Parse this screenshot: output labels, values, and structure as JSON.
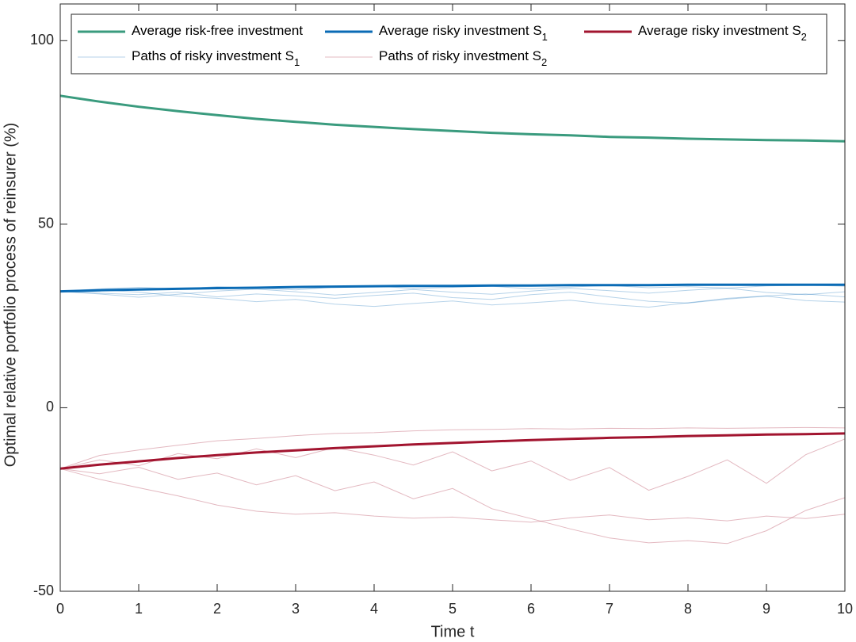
{
  "chart_data": {
    "type": "line",
    "xlabel": "Time t",
    "ylabel": "Optimal relative portfolio process of reinsurer (%)",
    "x": [
      0,
      0.5,
      1,
      1.5,
      2,
      2.5,
      3,
      3.5,
      4,
      4.5,
      5,
      5.5,
      6,
      6.5,
      7,
      7.5,
      8,
      8.5,
      9,
      9.5,
      10
    ],
    "xlim": [
      0,
      10
    ],
    "xticks": [
      0,
      1,
      2,
      3,
      4,
      5,
      6,
      7,
      8,
      9,
      10
    ],
    "ylim": [
      -50,
      110
    ],
    "yticks": [
      -50,
      0,
      50,
      100
    ],
    "grid": false,
    "legend_loc": "north",
    "legend_columns": 3,
    "series": [
      {
        "name": "Average risk-free investment",
        "color": "#3a9b7e",
        "values": [
          85.0,
          83.4,
          82.0,
          80.8,
          79.7,
          78.7,
          77.9,
          77.1,
          76.5,
          75.9,
          75.4,
          74.9,
          74.5,
          74.2,
          73.8,
          73.6,
          73.3,
          73.1,
          72.9,
          72.8,
          72.6
        ]
      },
      {
        "name": "Average risky investment S",
        "name_subscript": "1",
        "color": "#0a6bb5",
        "values": [
          31.7,
          32.0,
          32.2,
          32.4,
          32.6,
          32.7,
          32.9,
          33.0,
          33.1,
          33.2,
          33.2,
          33.3,
          33.3,
          33.4,
          33.4,
          33.4,
          33.5,
          33.5,
          33.5,
          33.5,
          33.5
        ]
      },
      {
        "name": "Average risky investment S",
        "name_subscript": "2",
        "color": "#a2142f",
        "values": [
          -16.6,
          -15.5,
          -14.6,
          -13.7,
          -12.9,
          -12.2,
          -11.6,
          -11.0,
          -10.5,
          -10.0,
          -9.6,
          -9.2,
          -8.8,
          -8.5,
          -8.2,
          -8.0,
          -7.7,
          -7.5,
          -7.3,
          -7.2,
          -7.0
        ]
      },
      {
        "name": "Paths of risky investment S",
        "name_subscript": "1",
        "color": "#0a6bb5",
        "paths": [
          [
            31.7,
            31.2,
            30.8,
            31.5,
            30.2,
            31.0,
            30.5,
            29.8,
            30.6,
            31.2,
            30.0,
            29.5,
            30.8,
            31.5,
            30.2,
            29.0,
            28.5,
            29.6,
            30.4,
            29.2,
            28.8
          ],
          [
            31.7,
            32.1,
            31.5,
            30.4,
            29.8,
            28.9,
            29.5,
            28.2,
            27.6,
            28.4,
            29.1,
            28.0,
            28.6,
            29.3,
            28.1,
            27.4,
            28.6,
            29.8,
            30.5,
            31.0,
            30.2
          ],
          [
            31.7,
            32.4,
            32.8,
            32.3,
            33.0,
            32.6,
            32.1,
            32.9,
            33.2,
            32.5,
            32.8,
            33.1,
            32.4,
            32.9,
            33.3,
            32.7,
            33.0,
            32.6,
            33.2,
            33.4,
            33.1
          ],
          [
            31.7,
            31.0,
            30.1,
            30.9,
            31.8,
            32.3,
            31.6,
            30.7,
            31.4,
            32.2,
            31.5,
            30.9,
            31.8,
            32.5,
            31.9,
            31.2,
            32.0,
            32.6,
            31.4,
            30.8,
            31.6
          ]
        ]
      },
      {
        "name": "Paths of risky investment S",
        "name_subscript": "2",
        "color": "#a2142f",
        "paths": [
          [
            -16.6,
            -13.0,
            -11.5,
            -10.2,
            -9.0,
            -8.4,
            -7.6,
            -7.0,
            -6.8,
            -6.3,
            -6.0,
            -5.9,
            -5.7,
            -5.8,
            -5.6,
            -5.7,
            -5.5,
            -5.6,
            -5.5,
            -5.4,
            -5.5
          ],
          [
            -16.6,
            -19.5,
            -21.8,
            -24.0,
            -26.5,
            -28.2,
            -29.0,
            -28.6,
            -29.5,
            -30.1,
            -29.8,
            -30.5,
            -31.2,
            -30.0,
            -29.2,
            -30.5,
            -30.0,
            -30.8,
            -29.5,
            -30.2,
            -29.0
          ],
          [
            -16.6,
            -18.0,
            -16.2,
            -19.5,
            -17.8,
            -21.0,
            -18.5,
            -22.6,
            -20.2,
            -24.8,
            -22.0,
            -27.5,
            -30.2,
            -33.0,
            -35.5,
            -36.8,
            -36.2,
            -37.0,
            -33.5,
            -28.0,
            -24.5
          ],
          [
            -16.6,
            -14.2,
            -15.8,
            -12.5,
            -13.9,
            -11.2,
            -13.6,
            -10.8,
            -12.9,
            -15.6,
            -12.0,
            -17.2,
            -14.5,
            -19.8,
            -16.3,
            -22.5,
            -18.7,
            -14.2,
            -20.6,
            -12.8,
            -8.5
          ]
        ]
      }
    ]
  }
}
